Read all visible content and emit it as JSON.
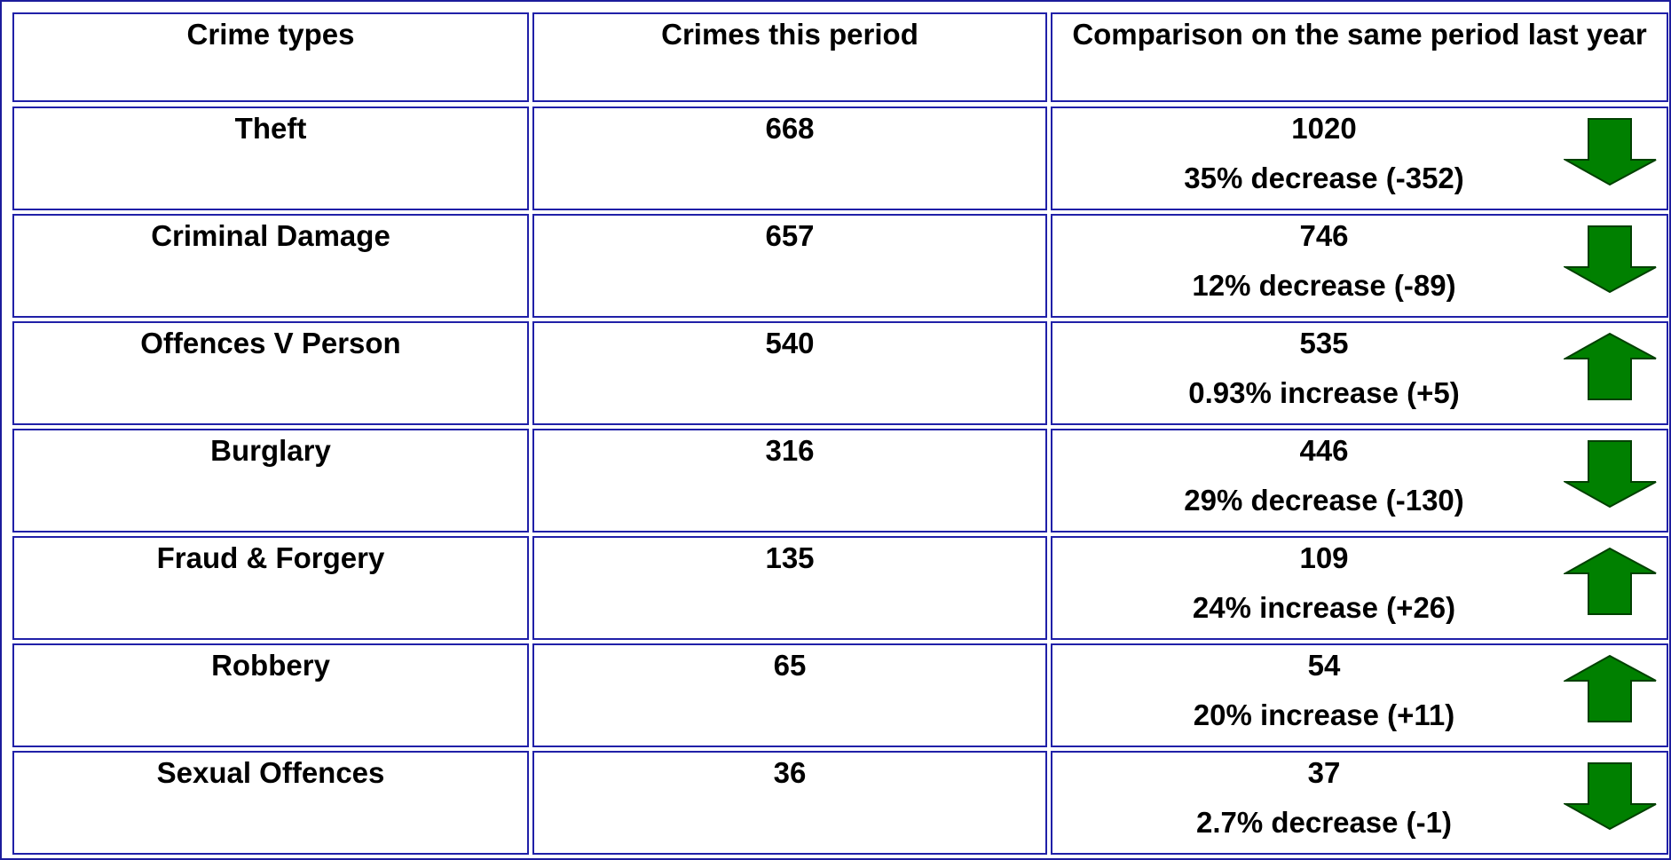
{
  "table": {
    "header": [
      "Crime types",
      "Crimes this period",
      "Comparison on the same period last year"
    ],
    "rows": [
      {
        "type": "Theft",
        "current": "668",
        "last_year": "1020",
        "change": "35% decrease (-352)",
        "arrow": "down"
      },
      {
        "type": "Criminal Damage",
        "current": "657",
        "last_year": "746",
        "change": "12% decrease (-89)",
        "arrow": "down"
      },
      {
        "type": "Offences V Person",
        "current": "540",
        "last_year": "535",
        "change": "0.93% increase (+5)",
        "arrow": "up"
      },
      {
        "type": "Burglary",
        "current": "316",
        "last_year": "446",
        "change": "29% decrease (-130)",
        "arrow": "down"
      },
      {
        "type": "Fraud & Forgery",
        "current": "135",
        "last_year": "109",
        "change": "24% increase (+26)",
        "arrow": "up"
      },
      {
        "type": "Robbery",
        "current": "65",
        "last_year": "54",
        "change": "20% increase (+11)",
        "arrow": "up"
      },
      {
        "type": "Sexual Offences",
        "current": "36",
        "last_year": "37",
        "change": "2.7% decrease (-1)",
        "arrow": "down"
      }
    ]
  }
}
